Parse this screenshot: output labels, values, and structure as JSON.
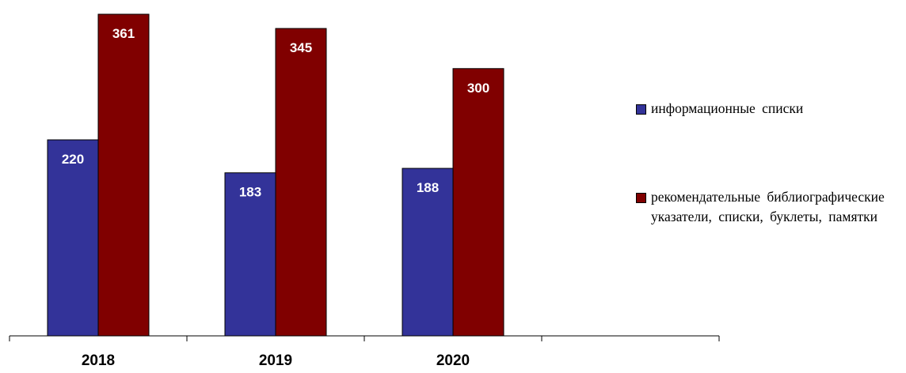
{
  "chart_data": {
    "type": "bar",
    "title": "",
    "xlabel": "",
    "ylabel": "",
    "categories": [
      "2018",
      "2019",
      "2020"
    ],
    "series": [
      {
        "name": "информационные списки",
        "values": [
          220,
          183,
          188
        ],
        "color": "#333399"
      },
      {
        "name": "рекомендательные библиографические указатели, списки, буклеты, памятки",
        "values": [
          361,
          345,
          300
        ],
        "color": "#800000"
      }
    ],
    "ylim": [
      0,
      370
    ],
    "grid": false,
    "data_labels": true,
    "data_label_color": "#ffffff",
    "legend_position": "right"
  }
}
